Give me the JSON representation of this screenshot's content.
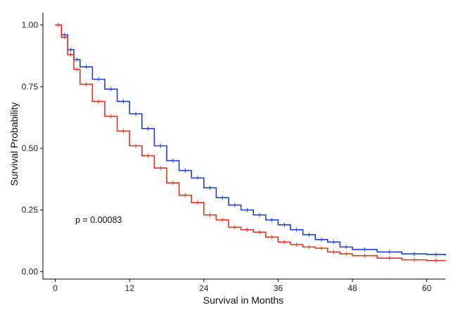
{
  "chart_data": {
    "type": "line",
    "xlabel": "Survival in Months",
    "ylabel": "Survival Probability",
    "annotation": "p = 0.00083",
    "xlim": [
      -2,
      63
    ],
    "ylim": [
      -0.03,
      1.05
    ],
    "x_ticks": [
      0,
      12,
      24,
      36,
      48,
      60
    ],
    "y_ticks": [
      0.0,
      0.25,
      0.5,
      0.75,
      1.0
    ],
    "x_tick_labels": [
      "0",
      "12",
      "24",
      "36",
      "48",
      "60"
    ],
    "y_tick_labels": [
      "0.00",
      "0.25",
      "0.50",
      "0.75",
      "1.00"
    ],
    "grid": false,
    "legend": "none",
    "series": [
      {
        "color": "#1f3fd6",
        "x": [
          0,
          1,
          2,
          3,
          4,
          6,
          8,
          10,
          12,
          14,
          16,
          18,
          20,
          22,
          24,
          26,
          28,
          30,
          32,
          34,
          36,
          38,
          40,
          42,
          44,
          46,
          48,
          52,
          56,
          60,
          63
        ],
        "y": [
          1.0,
          0.96,
          0.9,
          0.86,
          0.83,
          0.78,
          0.74,
          0.69,
          0.64,
          0.58,
          0.51,
          0.45,
          0.41,
          0.38,
          0.34,
          0.3,
          0.27,
          0.25,
          0.23,
          0.21,
          0.19,
          0.17,
          0.15,
          0.13,
          0.12,
          0.1,
          0.09,
          0.08,
          0.072,
          0.07,
          0.065
        ]
      },
      {
        "color": "#e8321e",
        "x": [
          0,
          1,
          2,
          3,
          4,
          6,
          8,
          10,
          12,
          14,
          16,
          18,
          20,
          22,
          24,
          26,
          28,
          30,
          32,
          34,
          36,
          38,
          40,
          42,
          44,
          46,
          48,
          52,
          56,
          60,
          63
        ],
        "y": [
          1.0,
          0.95,
          0.88,
          0.82,
          0.76,
          0.69,
          0.63,
          0.57,
          0.51,
          0.47,
          0.42,
          0.36,
          0.31,
          0.28,
          0.23,
          0.21,
          0.18,
          0.17,
          0.16,
          0.14,
          0.12,
          0.11,
          0.1,
          0.095,
          0.08,
          0.072,
          0.065,
          0.055,
          0.048,
          0.045,
          0.043
        ]
      }
    ]
  }
}
